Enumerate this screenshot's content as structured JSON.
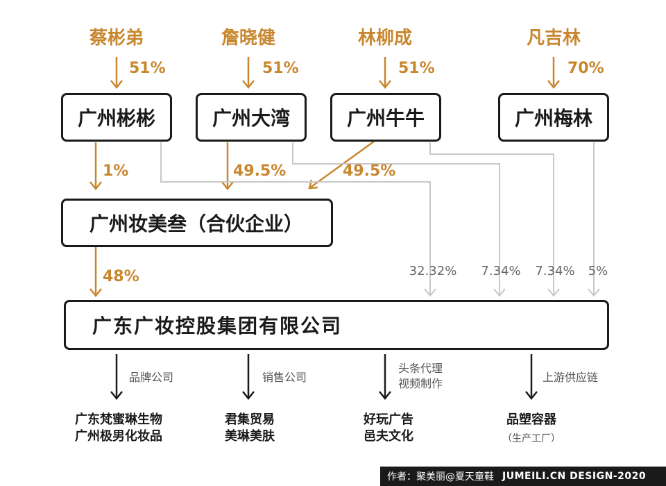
{
  "shareholders": [
    {
      "name": "蔡彬弟",
      "stake": "51%"
    },
    {
      "name": "詹晓健",
      "stake": "51%"
    },
    {
      "name": "林柳成",
      "stake": "51%"
    },
    {
      "name": "凡吉林",
      "stake": "70%"
    }
  ],
  "companies": {
    "binbin": "广州彬彬",
    "dawan": "广州大湾",
    "niuniu": "广州牛牛",
    "meilin": "广州梅林",
    "partnership": "广州妆美叁（合伙企业）",
    "main": "广东广妆控股集团有限公司"
  },
  "edges": {
    "binbin_to_partnership": "1%",
    "dawan_to_partnership": "49.5%",
    "niuniu_to_partnership": "49.5%",
    "partnership_to_main": "48%",
    "to_main_a": "32.32%",
    "to_main_b": "7.34%",
    "to_main_c": "7.34%",
    "to_main_d": "5%"
  },
  "subsidiaries": [
    {
      "relation": [
        "品牌公司"
      ],
      "names": [
        "广东梵蜜琳生物",
        "广州极男化妆品"
      ]
    },
    {
      "relation": [
        "销售公司"
      ],
      "names": [
        "君集贸易",
        "美琳美肤"
      ]
    },
    {
      "relation": [
        "头条代理",
        "视频制作"
      ],
      "names": [
        "好玩广告",
        "邑夫文化"
      ]
    },
    {
      "relation": [
        "上游供应链"
      ],
      "names": [
        "品塑容器"
      ],
      "note": "（生产工厂）"
    }
  ],
  "footer": {
    "author": "作者：聚美丽@夏天童鞋",
    "brand": "JUMEILI.CN DESIGN-2020"
  },
  "colors": {
    "accent": "#c8872f",
    "gray_line": "#c8c8c8",
    "dark": "#1a1a1a"
  }
}
